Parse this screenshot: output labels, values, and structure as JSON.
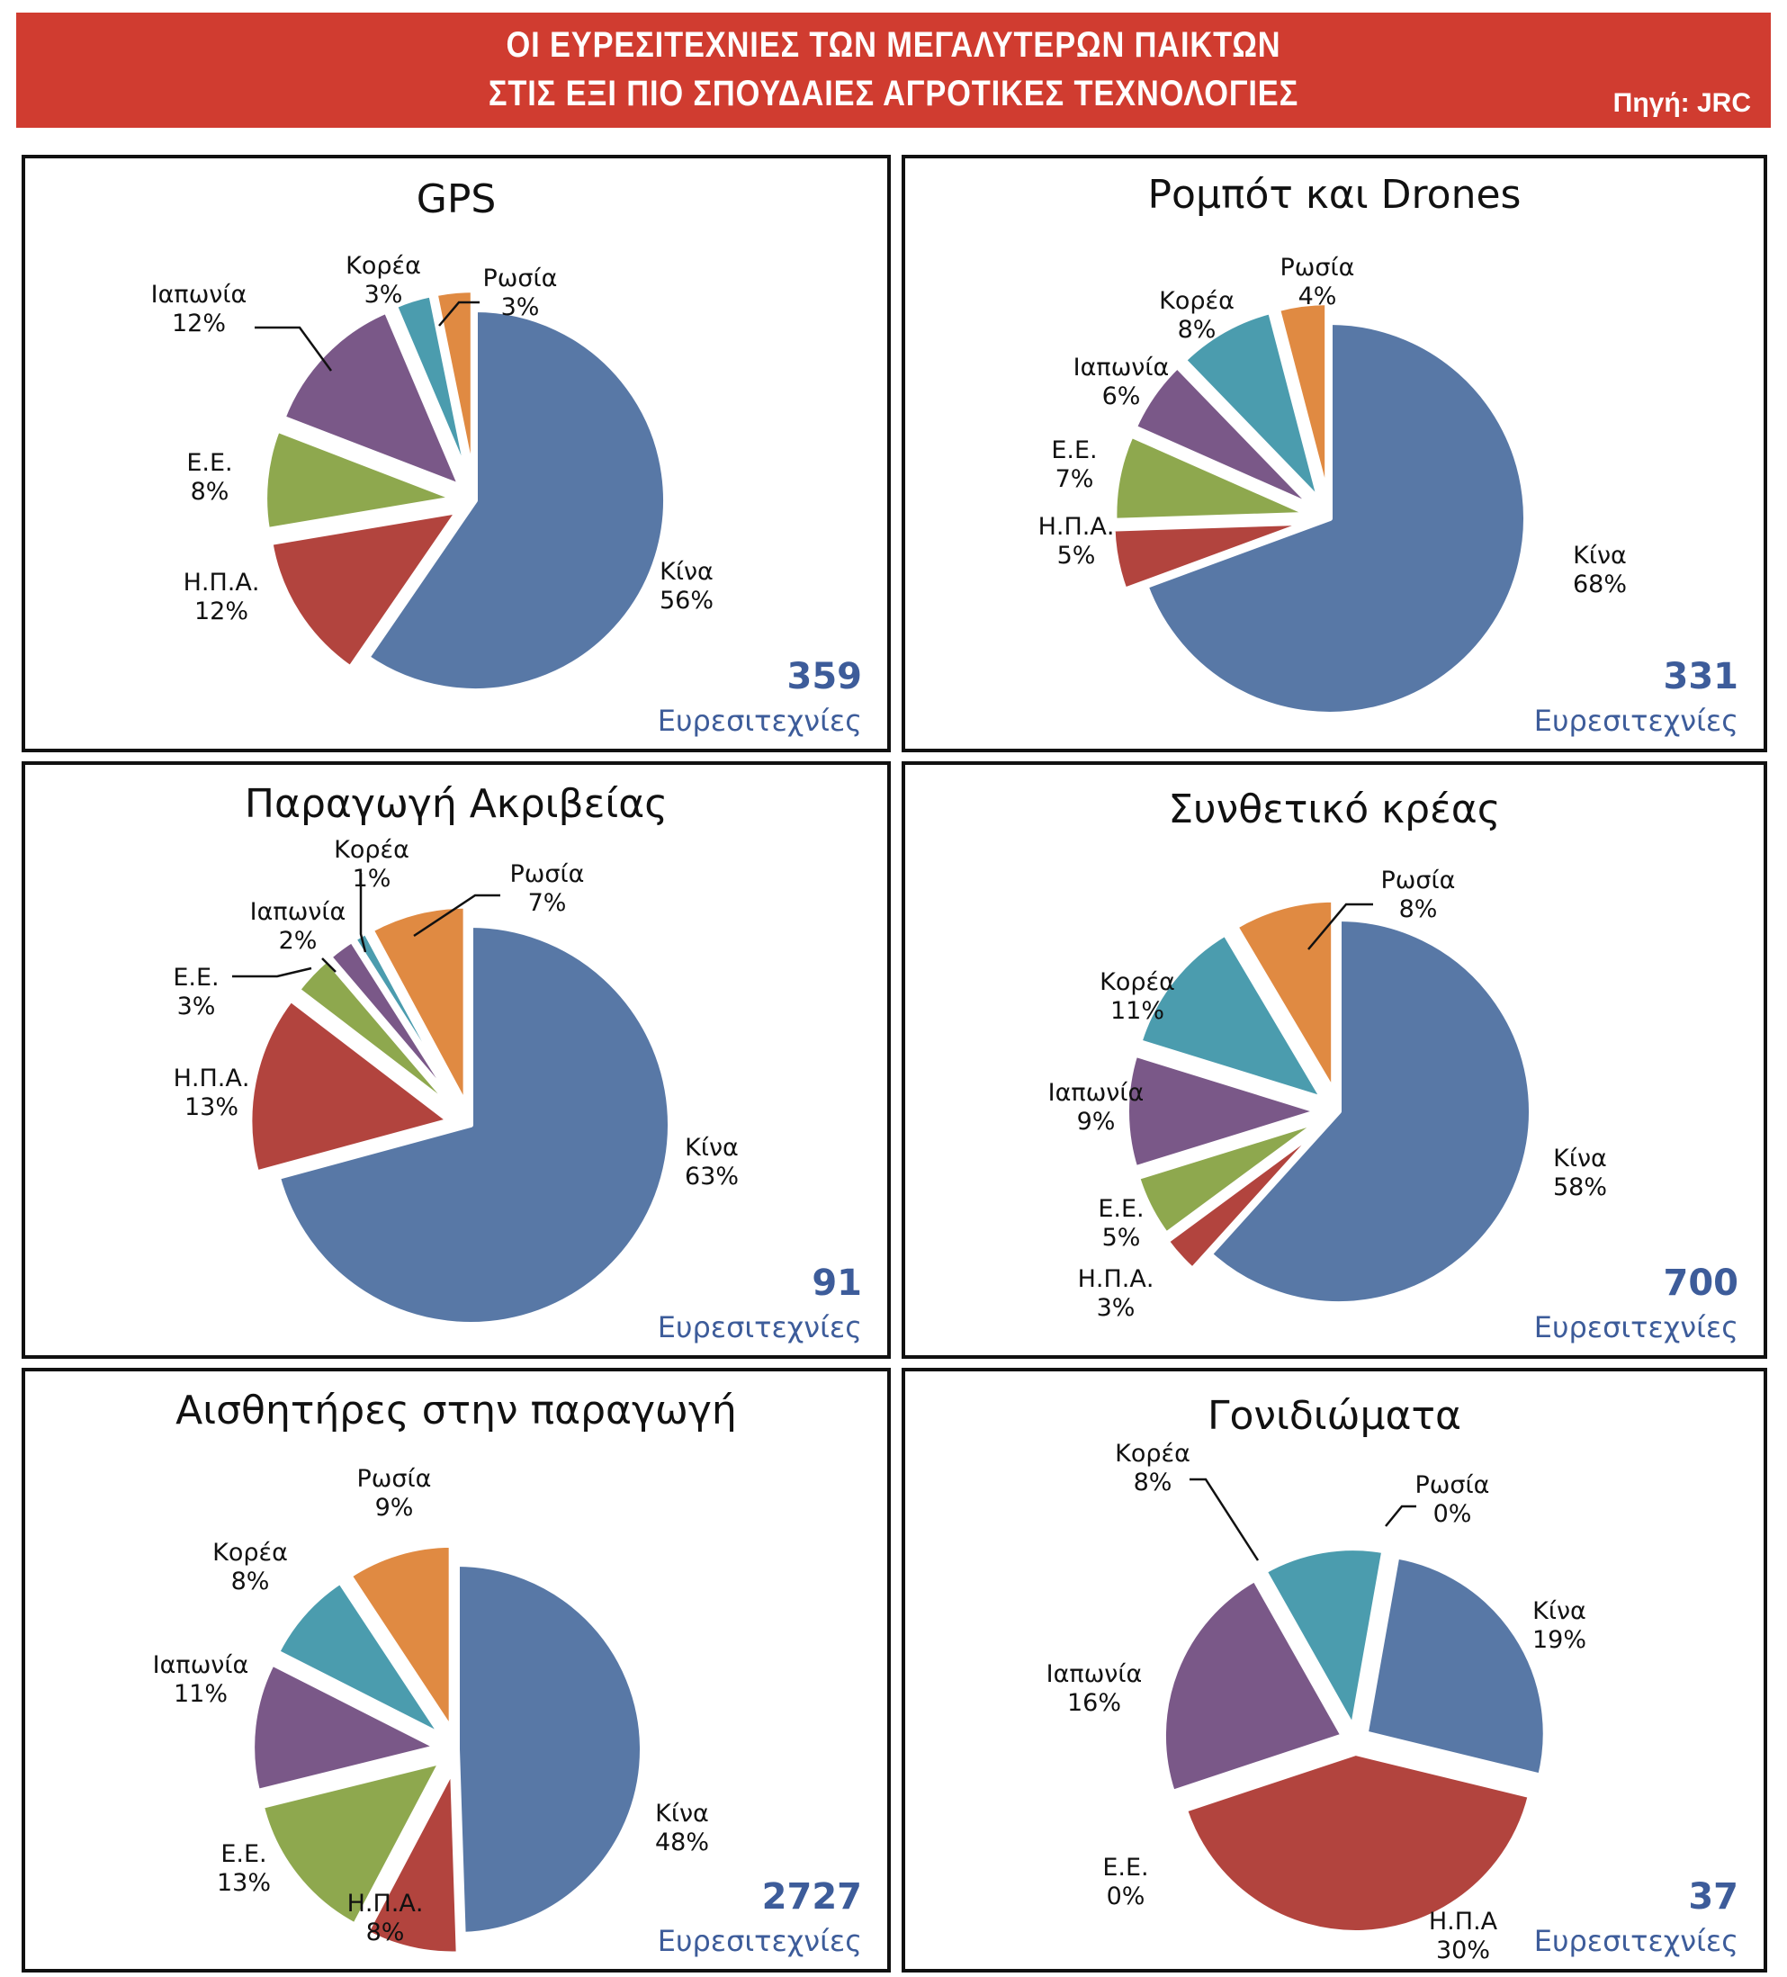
{
  "header": {
    "title_line1": "ΟΙ ΕΥΡΕΣΙΤΕΧΝΙΕΣ ΤΩΝ ΜΕΓΑΛΥΤΕΡΩΝ ΠΑΙΚΤΩΝ",
    "title_line2": "ΣΤΙΣ ΕΞΙ ΠΙΟ ΣΠΟΥΔΑΙΕΣ ΑΓΡΟΤΙΚΕΣ ΤΕΧΝΟΛΟΓΙΕΣ",
    "source": "Πηγή: JRC"
  },
  "colors": {
    "banner": "#d03c30",
    "Κίνα": "#5878a6",
    "Η.Π.Α.": "#b2443e",
    "Ε.Ε.": "#8ea84e",
    "Ιαπωνία": "#7a5888",
    "Κορέα": "#4b9cae",
    "Ρωσία": "#e08a42",
    "count_text": "#3d5c9a"
  },
  "chart_data": [
    {
      "type": "pie",
      "title": "GPS",
      "total": "359",
      "unit": "Ευρεσιτεχνίες",
      "slices": [
        {
          "key": "Κίνα",
          "label": "Κίνα",
          "value": 56,
          "text": "56%"
        },
        {
          "key": "Η.Π.Α.",
          "label": "Η.Π.Α.",
          "value": 12,
          "text": "12%"
        },
        {
          "key": "Ε.Ε.",
          "label": "Ε.Ε.",
          "value": 8,
          "text": "8%"
        },
        {
          "key": "Ιαπωνία",
          "label": "Ιαπωνία",
          "value": 12,
          "text": "12%"
        },
        {
          "key": "Κορέα",
          "label": "Κορέα",
          "value": 3,
          "text": "3%"
        },
        {
          "key": "Ρωσία",
          "label": "Ρωσία",
          "value": 3,
          "text": "3%"
        }
      ]
    },
    {
      "type": "pie",
      "title": "Ρομπότ και Drones",
      "total": "331",
      "unit": "Ευρεσιτεχνίες",
      "slices": [
        {
          "key": "Κίνα",
          "label": "Κίνα",
          "value": 68,
          "text": "68%"
        },
        {
          "key": "Η.Π.Α.",
          "label": "Η.Π.Α.",
          "value": 5,
          "text": "5%"
        },
        {
          "key": "Ε.Ε.",
          "label": "Ε.Ε.",
          "value": 7,
          "text": "7%"
        },
        {
          "key": "Ιαπωνία",
          "label": "Ιαπωνία",
          "value": 6,
          "text": "6%"
        },
        {
          "key": "Κορέα",
          "label": "Κορέα",
          "value": 8,
          "text": "8%"
        },
        {
          "key": "Ρωσία",
          "label": "Ρωσία",
          "value": 4,
          "text": "4%"
        }
      ]
    },
    {
      "type": "pie",
      "title": "Παραγωγή Ακριβείας",
      "total": "91",
      "unit": "Ευρεσιτεχνίες",
      "slices": [
        {
          "key": "Κίνα",
          "label": "Κίνα",
          "value": 63,
          "text": "63%"
        },
        {
          "key": "Η.Π.Α.",
          "label": "Η.Π.Α.",
          "value": 13,
          "text": "13%"
        },
        {
          "key": "Ε.Ε.",
          "label": "Ε.Ε.",
          "value": 3,
          "text": "3%"
        },
        {
          "key": "Ιαπωνία",
          "label": "Ιαπωνία",
          "value": 2,
          "text": "2%"
        },
        {
          "key": "Κορέα",
          "label": "Κορέα",
          "value": 1,
          "text": "1%"
        },
        {
          "key": "Ρωσία",
          "label": "Ρωσία",
          "value": 7,
          "text": "7%"
        }
      ]
    },
    {
      "type": "pie",
      "title": "Συνθετικό κρέας",
      "total": "700",
      "unit": "Ευρεσιτεχνίες",
      "slices": [
        {
          "key": "Κίνα",
          "label": "Κίνα",
          "value": 58,
          "text": "58%"
        },
        {
          "key": "Η.Π.Α.",
          "label": "Η.Π.Α.",
          "value": 3,
          "text": "3%"
        },
        {
          "key": "Ε.Ε.",
          "label": "Ε.Ε.",
          "value": 5,
          "text": "5%"
        },
        {
          "key": "Ιαπωνία",
          "label": "Ιαπωνία",
          "value": 9,
          "text": "9%"
        },
        {
          "key": "Κορέα",
          "label": "Κορέα",
          "value": 11,
          "text": "11%"
        },
        {
          "key": "Ρωσία",
          "label": "Ρωσία",
          "value": 8,
          "text": "8%"
        }
      ]
    },
    {
      "type": "pie",
      "title": "Αισθητήρες στην παραγωγή",
      "total": "2727",
      "unit": "Ευρεσιτεχνίες",
      "slices": [
        {
          "key": "Κίνα",
          "label": "Κίνα",
          "value": 48,
          "text": "48%"
        },
        {
          "key": "Η.Π.Α.",
          "label": "Η.Π.Α.",
          "value": 8,
          "text": "8%"
        },
        {
          "key": "Ε.Ε.",
          "label": "Ε.Ε.",
          "value": 13,
          "text": "13%"
        },
        {
          "key": "Ιαπωνία",
          "label": "Ιαπωνία",
          "value": 11,
          "text": "11%"
        },
        {
          "key": "Κορέα",
          "label": "Κορέα",
          "value": 8,
          "text": "8%"
        },
        {
          "key": "Ρωσία",
          "label": "Ρωσία",
          "value": 9,
          "text": "9%"
        }
      ]
    },
    {
      "type": "pie",
      "title": "Γονιδιώματα",
      "total": "37",
      "unit": "Ευρεσιτεχνίες",
      "slices": [
        {
          "key": "Κίνα",
          "label": "Κίνα",
          "value": 19,
          "text": "19%"
        },
        {
          "key": "Η.Π.Α.",
          "label": "Η.Π.Α",
          "value": 30,
          "text": "30%"
        },
        {
          "key": "Ε.Ε.",
          "label": "Ε.Ε.",
          "value": 0,
          "text": "0%"
        },
        {
          "key": "Ιαπωνία",
          "label": "Ιαπωνία",
          "value": 16,
          "text": "16%"
        },
        {
          "key": "Κορέα",
          "label": "Κορέα",
          "value": 8,
          "text": "8%"
        },
        {
          "key": "Ρωσία",
          "label": "Ρωσία",
          "value": 0,
          "text": "0%"
        }
      ]
    }
  ]
}
